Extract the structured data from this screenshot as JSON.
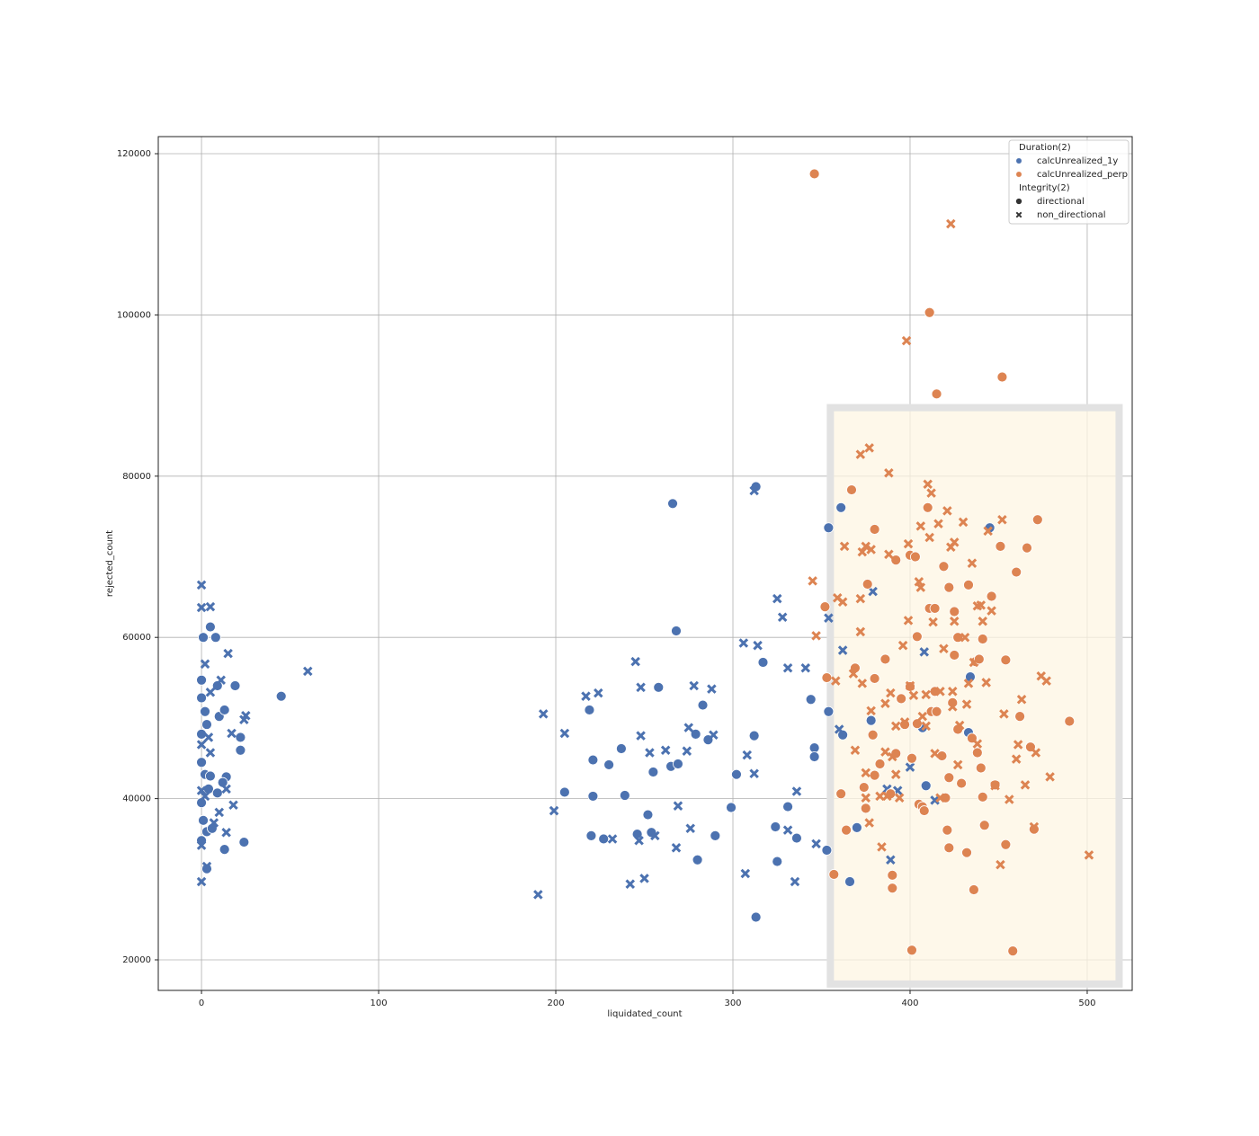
{
  "chart_data": {
    "type": "scatter",
    "xlabel": "liquidated_count",
    "ylabel": "rejected_count",
    "xlim": [
      -24.4,
      525.4
    ],
    "ylim": [
      16210,
      122120
    ],
    "xticks": [
      0,
      100,
      200,
      300,
      400,
      500
    ],
    "yticks": [
      20000,
      40000,
      60000,
      80000,
      100000,
      120000
    ],
    "grid": true,
    "highlight_region": {
      "x": [
        355,
        518
      ],
      "y": [
        17000,
        88500
      ],
      "color": "#fdf6e3"
    },
    "legend": {
      "corner": "upper right",
      "hue_title": "Duration(2)",
      "hues": [
        {
          "name": "calcUnrealized_1y",
          "color": "#4c72b0"
        },
        {
          "name": "calcUnrealized_perp",
          "color": "#dd8452"
        }
      ],
      "style_title": "Integrity(2)",
      "styles": [
        {
          "name": "directional",
          "marker": "circle"
        },
        {
          "name": "non_directional",
          "marker": "x"
        }
      ]
    },
    "series": [
      {
        "hue": 0,
        "style": 0,
        "x": [
          0,
          0,
          1,
          5,
          8,
          0,
          2,
          3,
          0,
          2,
          4,
          0,
          1,
          3,
          0,
          6,
          9,
          10,
          13,
          9,
          19,
          22,
          22,
          14,
          12,
          13,
          24,
          45,
          3,
          5,
          205,
          219,
          221,
          221,
          220,
          227,
          230,
          237,
          239,
          246,
          252,
          254,
          255,
          258,
          265,
          266,
          268,
          269,
          279,
          280,
          283,
          286,
          290,
          299,
          302,
          312,
          313,
          313,
          317,
          324,
          325,
          331,
          336,
          344,
          346,
          346,
          353,
          354,
          354,
          361,
          362,
          366,
          370,
          378,
          409,
          434,
          433,
          445,
          407
        ],
        "values": [
          54700,
          52500,
          60000,
          61300,
          60000,
          48000,
          50800,
          49200,
          44500,
          43000,
          41200,
          39500,
          37300,
          35900,
          34800,
          36300,
          40700,
          50200,
          51000,
          54000,
          54000,
          47600,
          46000,
          42700,
          42000,
          33700,
          34600,
          52700,
          31300,
          42800,
          40800,
          51000,
          44800,
          40300,
          35400,
          35000,
          44200,
          46200,
          40400,
          35600,
          38000,
          35800,
          43300,
          53800,
          44000,
          76600,
          60800,
          44300,
          48000,
          32400,
          51600,
          47300,
          35400,
          38900,
          43000,
          47800,
          78700,
          25300,
          56900,
          36500,
          32200,
          39000,
          35100,
          52300,
          46300,
          45200,
          33600,
          50800,
          73600,
          76100,
          47900,
          29700,
          36400,
          49700,
          41600,
          55100,
          48200,
          73600,
          48800
        ]
      },
      {
        "hue": 0,
        "style": 1,
        "x": [
          0,
          0,
          5,
          2,
          15,
          11,
          5,
          4,
          5,
          0,
          0,
          2,
          7,
          10,
          0,
          0,
          3,
          14,
          18,
          14,
          17,
          25,
          24,
          60,
          190,
          193,
          199,
          205,
          217,
          224,
          232,
          242,
          245,
          247,
          248,
          248,
          250,
          253,
          256,
          262,
          268,
          269,
          274,
          275,
          276,
          278,
          288,
          289,
          306,
          307,
          308,
          312,
          312,
          314,
          325,
          328,
          331,
          331,
          335,
          336,
          341,
          347,
          354,
          360,
          362,
          379,
          387,
          389,
          393,
          400,
          408,
          414
        ],
        "values": [
          66500,
          63700,
          63800,
          56700,
          58000,
          54700,
          53200,
          47600,
          45700,
          46700,
          41000,
          40300,
          37000,
          38300,
          34200,
          29700,
          31600,
          35800,
          39200,
          41200,
          48100,
          50300,
          49800,
          55800,
          28100,
          50500,
          38500,
          48100,
          52700,
          53100,
          35000,
          29400,
          57000,
          34800,
          47800,
          53800,
          30100,
          45700,
          35400,
          46000,
          33900,
          39100,
          45900,
          48800,
          36300,
          54000,
          53600,
          47900,
          59300,
          30700,
          45400,
          43100,
          78200,
          59000,
          64800,
          62500,
          56200,
          36100,
          29700,
          40900,
          56200,
          34400,
          62400,
          48600,
          58400,
          65700,
          41200,
          32400,
          41000,
          43900,
          58200,
          39800
        ]
      },
      {
        "hue": 1,
        "style": 0,
        "x": [
          346,
          411,
          415,
          452,
          352,
          353,
          367,
          361,
          364,
          357,
          369,
          374,
          375,
          376,
          379,
          380,
          380,
          380,
          383,
          386,
          389,
          390,
          390,
          392,
          392,
          395,
          397,
          400,
          400,
          401,
          401,
          403,
          404,
          404,
          405,
          407,
          408,
          410,
          411,
          412,
          414,
          414,
          415,
          418,
          419,
          420,
          421,
          422,
          422,
          422,
          424,
          425,
          425,
          427,
          427,
          429,
          432,
          433,
          435,
          436,
          437,
          438,
          439,
          440,
          441,
          441,
          442,
          446,
          448,
          451,
          454,
          454,
          458,
          460,
          462,
          466,
          468,
          470,
          472,
          490
        ],
        "values": [
          117500,
          100300,
          90200,
          92300,
          63800,
          55000,
          78300,
          40600,
          36100,
          30600,
          56200,
          41400,
          38800,
          66600,
          47900,
          42900,
          54900,
          73400,
          44300,
          57300,
          40600,
          28900,
          30500,
          69600,
          45600,
          52400,
          49200,
          70200,
          53900,
          45000,
          21200,
          70000,
          60100,
          49300,
          39300,
          39000,
          38500,
          76100,
          63600,
          50800,
          63600,
          53300,
          50800,
          45300,
          68800,
          40100,
          36100,
          42600,
          33900,
          66200,
          51900,
          63200,
          57800,
          60000,
          48600,
          41900,
          33300,
          66500,
          47500,
          28700,
          57000,
          45700,
          57300,
          43800,
          40200,
          59800,
          36700,
          65100,
          41700,
          71300,
          57200,
          34300,
          21100,
          68100,
          50200,
          71100,
          46400,
          36200,
          74600,
          49600
        ]
      },
      {
        "hue": 1,
        "style": 1,
        "x": [
          345,
          347,
          358,
          359,
          362,
          363,
          368,
          369,
          372,
          372,
          372,
          373,
          373,
          375,
          375,
          375,
          377,
          377,
          378,
          378,
          383,
          384,
          386,
          386,
          387,
          388,
          388,
          389,
          390,
          392,
          392,
          394,
          396,
          397,
          398,
          399,
          399,
          400,
          402,
          405,
          406,
          406,
          407,
          409,
          409,
          410,
          411,
          412,
          413,
          414,
          416,
          417,
          417,
          419,
          421,
          423,
          423,
          424,
          424,
          425,
          425,
          427,
          428,
          430,
          431,
          432,
          433,
          435,
          436,
          438,
          438,
          440,
          441,
          443,
          444,
          446,
          448,
          451,
          452,
          453,
          456,
          460,
          461,
          463,
          465,
          470,
          471,
          474,
          477,
          479,
          501
        ],
        "values": [
          67000,
          60200,
          54600,
          64900,
          64400,
          71300,
          55500,
          46000,
          82700,
          60700,
          64800,
          70600,
          54300,
          71300,
          43200,
          40100,
          83500,
          37000,
          50900,
          70900,
          40300,
          34000,
          51800,
          45800,
          40300,
          80400,
          70300,
          53100,
          45200,
          43000,
          49000,
          40100,
          59000,
          49500,
          96800,
          71600,
          62100,
          54000,
          52800,
          66900,
          66200,
          73800,
          50200,
          49000,
          52900,
          79000,
          72400,
          77900,
          61900,
          45600,
          74100,
          53300,
          40100,
          58600,
          75700,
          111300,
          71200,
          53300,
          51400,
          62000,
          71800,
          44200,
          49100,
          74300,
          60000,
          51700,
          54300,
          69200,
          56900,
          63900,
          46800,
          64000,
          62000,
          54400,
          73200,
          63300,
          41600,
          31800,
          74600,
          50500,
          39900,
          44900,
          46700,
          52300,
          41700,
          36500,
          45700,
          55200,
          54600,
          42700,
          33000
        ]
      }
    ]
  }
}
